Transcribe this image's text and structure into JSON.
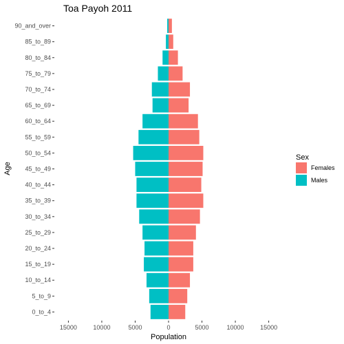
{
  "chart_data": {
    "type": "bar",
    "title": "Toa Payoh  2011",
    "xlabel": "Population",
    "ylabel": "Age",
    "xlim": [
      -17000,
      17000
    ],
    "x_ticks": [
      -15000,
      -10000,
      -5000,
      0,
      5000,
      10000,
      15000
    ],
    "x_tick_labels": [
      "15000",
      "10000",
      "5000",
      "0",
      "5000",
      "10000",
      "15000"
    ],
    "categories": [
      "0_to_4",
      "5_to_9",
      "10_to_14",
      "15_to_19",
      "20_to_24",
      "25_to_29",
      "30_to_34",
      "35_to_39",
      "40_to_44",
      "45_to_49",
      "50_to_54",
      "55_to_59",
      "60_to_64",
      "65_to_69",
      "70_to_74",
      "75_to_79",
      "80_to_84",
      "85_to_89",
      "90_and_over"
    ],
    "series": [
      {
        "name": "Females",
        "color": "#F8766D",
        "values": [
          2500,
          2800,
          3200,
          3700,
          3700,
          4100,
          4700,
          5200,
          4900,
          5100,
          5200,
          4600,
          4400,
          3000,
          3200,
          2100,
          1400,
          700,
          500
        ]
      },
      {
        "name": "Males",
        "color": "#00BFC4",
        "values": [
          -2700,
          -2900,
          -3300,
          -3700,
          -3600,
          -3900,
          -4400,
          -4800,
          -4800,
          -5000,
          -5300,
          -4500,
          -3900,
          -2400,
          -2500,
          -1600,
          -900,
          -400,
          -200
        ]
      }
    ],
    "legend": {
      "title": "Sex",
      "position": "right"
    },
    "grid": false
  }
}
